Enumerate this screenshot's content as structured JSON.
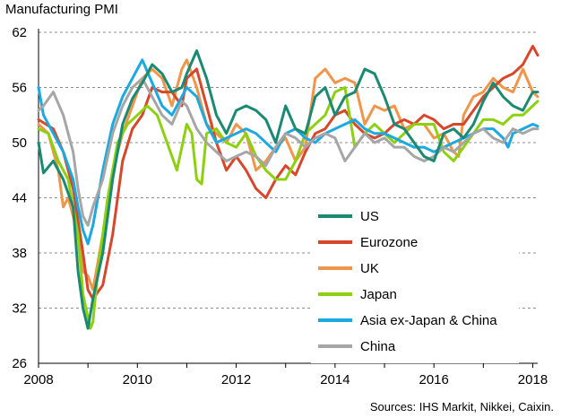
{
  "title": "Manufacturing  PMI",
  "source": "Sources: IHS Markit, Nikkei, Caixin.",
  "chart_data": {
    "type": "line",
    "title": "Manufacturing  PMI",
    "xlabel": "",
    "ylabel": "",
    "xlim": [
      2008.0,
      2018.1
    ],
    "ylim": [
      26,
      62
    ],
    "y_ticks": [
      26,
      32,
      38,
      44,
      50,
      56,
      62
    ],
    "x_ticks": [
      2008,
      2010,
      2012,
      2014,
      2016,
      2018
    ],
    "x_tick_labels": [
      "2008",
      "2010",
      "2012",
      "2014",
      "2016",
      "2018"
    ],
    "grid": "horizontal dashed",
    "legend_position": "center-right",
    "series": [
      {
        "name": "US",
        "color": "#1b8a72",
        "x": [
          2008.0,
          2008.1,
          2008.3,
          2008.5,
          2008.7,
          2008.8,
          2008.9,
          2009.0,
          2009.1,
          2009.3,
          2009.5,
          2009.7,
          2009.9,
          2010.1,
          2010.3,
          2010.5,
          2010.7,
          2010.9,
          2011.0,
          2011.2,
          2011.4,
          2011.6,
          2011.8,
          2012.0,
          2012.2,
          2012.4,
          2012.6,
          2012.8,
          2013.0,
          2013.2,
          2013.4,
          2013.6,
          2013.8,
          2014.0,
          2014.2,
          2014.4,
          2014.6,
          2014.8,
          2015.0,
          2015.2,
          2015.4,
          2015.6,
          2015.8,
          2016.0,
          2016.2,
          2016.4,
          2016.6,
          2016.8,
          2017.0,
          2017.2,
          2017.4,
          2017.6,
          2017.8,
          2018.0,
          2018.1
        ],
        "values": [
          50,
          46.7,
          48,
          46,
          43,
          36,
          32,
          29.8,
          33,
          38,
          46,
          52,
          54.8,
          56.5,
          58.5,
          57.5,
          55.5,
          56,
          57.5,
          60,
          57,
          53,
          51,
          53.5,
          54,
          53.5,
          52.5,
          50,
          54,
          51.5,
          51,
          55,
          56,
          53,
          55,
          55.5,
          58,
          57.5,
          55,
          52,
          51.5,
          50,
          48.5,
          48,
          51,
          51.5,
          50.5,
          52,
          54.5,
          56.5,
          55,
          54,
          53.5,
          55.5,
          55.5
        ]
      },
      {
        "name": "Eurozone",
        "color": "#d6472b",
        "x": [
          2008.0,
          2008.3,
          2008.5,
          2008.7,
          2008.9,
          2009.0,
          2009.1,
          2009.3,
          2009.5,
          2009.7,
          2009.9,
          2010.1,
          2010.3,
          2010.5,
          2010.7,
          2010.9,
          2011.0,
          2011.2,
          2011.4,
          2011.6,
          2011.8,
          2012.0,
          2012.2,
          2012.4,
          2012.6,
          2012.8,
          2013.0,
          2013.2,
          2013.4,
          2013.6,
          2013.8,
          2014.0,
          2014.2,
          2014.4,
          2014.6,
          2014.8,
          2015.0,
          2015.2,
          2015.4,
          2015.6,
          2015.8,
          2016.0,
          2016.2,
          2016.4,
          2016.6,
          2016.8,
          2017.0,
          2017.2,
          2017.4,
          2017.6,
          2017.8,
          2018.0,
          2018.1
        ],
        "values": [
          52.5,
          51.5,
          49,
          45,
          38,
          34,
          33,
          34.5,
          40,
          48,
          51.5,
          53,
          56,
          55.5,
          55.5,
          54,
          57,
          58,
          54,
          50,
          47,
          48.5,
          47,
          45,
          44,
          46,
          47.5,
          46.5,
          49,
          51,
          51.5,
          53,
          53.5,
          52,
          51,
          50.5,
          51,
          52,
          52.5,
          52,
          53,
          52.5,
          51.5,
          52,
          52,
          53.5,
          55,
          56,
          57,
          57.5,
          58.5,
          60.5,
          59.5
        ]
      },
      {
        "name": "UK",
        "color": "#f0964a",
        "x": [
          2008.0,
          2008.2,
          2008.4,
          2008.5,
          2008.6,
          2008.8,
          2008.9,
          2009.0,
          2009.1,
          2009.3,
          2009.5,
          2009.7,
          2009.9,
          2010.1,
          2010.3,
          2010.5,
          2010.7,
          2010.9,
          2011.0,
          2011.2,
          2011.4,
          2011.6,
          2011.8,
          2012.0,
          2012.2,
          2012.4,
          2012.6,
          2012.8,
          2013.0,
          2013.2,
          2013.4,
          2013.6,
          2013.8,
          2014.0,
          2014.2,
          2014.4,
          2014.6,
          2014.8,
          2015.0,
          2015.2,
          2015.4,
          2015.6,
          2015.8,
          2016.0,
          2016.2,
          2016.4,
          2016.5,
          2016.6,
          2016.8,
          2017.0,
          2017.2,
          2017.4,
          2017.6,
          2017.8,
          2018.0,
          2018.1
        ],
        "values": [
          52,
          51,
          47,
          43,
          44,
          40,
          36,
          35.5,
          34,
          40,
          47,
          51,
          54,
          57,
          58,
          57,
          54,
          58,
          59,
          56,
          52,
          51,
          50,
          52,
          51,
          47,
          48,
          49.5,
          50.5,
          48,
          49.5,
          57,
          58,
          56.5,
          57,
          56.5,
          52,
          54,
          53.5,
          54,
          51.5,
          52,
          52,
          50.5,
          51,
          49,
          48.5,
          53,
          55,
          55.5,
          57,
          56,
          55.5,
          58,
          55.5,
          55
        ]
      },
      {
        "name": "Japan",
        "color": "#8dd010",
        "x": [
          2008.0,
          2008.2,
          2008.4,
          2008.6,
          2008.8,
          2008.9,
          2009.0,
          2009.05,
          2009.1,
          2009.2,
          2009.4,
          2009.6,
          2009.8,
          2010.0,
          2010.2,
          2010.4,
          2010.6,
          2010.8,
          2011.0,
          2011.1,
          2011.2,
          2011.3,
          2011.4,
          2011.6,
          2011.8,
          2012.0,
          2012.2,
          2012.4,
          2012.6,
          2012.8,
          2013.0,
          2013.2,
          2013.4,
          2013.6,
          2013.8,
          2014.0,
          2014.2,
          2014.4,
          2014.6,
          2014.8,
          2015.0,
          2015.2,
          2015.4,
          2015.6,
          2015.8,
          2016.0,
          2016.2,
          2016.4,
          2016.6,
          2016.8,
          2017.0,
          2017.2,
          2017.4,
          2017.6,
          2017.8,
          2018.0,
          2018.1
        ],
        "values": [
          51.5,
          51,
          48,
          46,
          40,
          33.5,
          31,
          29.8,
          30.5,
          36,
          44,
          50,
          52,
          53,
          54,
          53,
          50,
          47,
          52,
          51,
          46,
          45.5,
          51,
          51.5,
          50,
          49.5,
          51,
          48.5,
          47,
          46,
          46,
          48,
          51,
          52,
          53,
          55.5,
          56,
          49.5,
          51,
          52,
          51,
          50,
          51,
          52,
          52,
          52,
          49,
          48,
          49.5,
          51,
          52.5,
          52.5,
          52,
          53,
          53,
          54,
          54.5
        ]
      },
      {
        "name": "Asia ex-Japan & China",
        "color": "#1aa9e0",
        "x": [
          2008.0,
          2008.1,
          2008.3,
          2008.5,
          2008.7,
          2008.8,
          2008.9,
          2009.0,
          2009.1,
          2009.3,
          2009.5,
          2009.7,
          2009.9,
          2010.1,
          2010.3,
          2010.5,
          2010.7,
          2010.9,
          2011.0,
          2011.2,
          2011.4,
          2011.6,
          2011.8,
          2012.0,
          2012.2,
          2012.4,
          2012.6,
          2012.8,
          2013.0,
          2013.2,
          2013.4,
          2013.6,
          2013.8,
          2014.0,
          2014.2,
          2014.4,
          2014.6,
          2014.8,
          2015.0,
          2015.2,
          2015.4,
          2015.6,
          2015.8,
          2016.0,
          2016.2,
          2016.4,
          2016.6,
          2016.8,
          2017.0,
          2017.2,
          2017.4,
          2017.5,
          2017.6,
          2017.8,
          2018.0,
          2018.1
        ],
        "values": [
          56,
          53,
          51,
          49,
          46,
          43,
          40.5,
          39,
          41,
          47,
          52,
          55,
          57,
          59,
          56.5,
          54,
          53,
          55,
          56,
          55,
          52,
          50,
          50.5,
          51,
          51.5,
          51,
          50,
          49,
          51,
          51.5,
          50.5,
          50,
          51,
          51.5,
          52,
          52.5,
          51.5,
          51,
          51,
          50.5,
          50,
          49.5,
          49.5,
          49,
          49.5,
          50,
          50.5,
          51,
          51.5,
          51.5,
          50.5,
          49.5,
          51,
          51.5,
          52,
          51.8
        ]
      },
      {
        "name": "China",
        "color": "#a6a6a6",
        "x": [
          2008.0,
          2008.1,
          2008.3,
          2008.5,
          2008.7,
          2008.8,
          2008.9,
          2009.0,
          2009.1,
          2009.3,
          2009.5,
          2009.7,
          2009.9,
          2010.1,
          2010.3,
          2010.5,
          2010.7,
          2010.9,
          2011.0,
          2011.2,
          2011.4,
          2011.6,
          2011.8,
          2012.0,
          2012.2,
          2012.4,
          2012.6,
          2012.8,
          2013.0,
          2013.2,
          2013.4,
          2013.6,
          2013.8,
          2014.0,
          2014.2,
          2014.4,
          2014.6,
          2014.8,
          2015.0,
          2015.2,
          2015.4,
          2015.6,
          2015.8,
          2016.0,
          2016.2,
          2016.4,
          2016.6,
          2016.8,
          2017.0,
          2017.2,
          2017.4,
          2017.6,
          2017.8,
          2018.0,
          2018.1
        ],
        "values": [
          53.5,
          54,
          55.5,
          53,
          49,
          45,
          42,
          41,
          43,
          46,
          51,
          54,
          56,
          57,
          55,
          53,
          52,
          54.5,
          54,
          51.5,
          50,
          49,
          48,
          48.5,
          49,
          48.5,
          47.5,
          49.5,
          51,
          50.5,
          49.5,
          50.5,
          51,
          50.5,
          48,
          49.5,
          51,
          50,
          50.5,
          49.5,
          49.5,
          48.5,
          48,
          48.5,
          49.5,
          49,
          50,
          51,
          51.5,
          50.5,
          50,
          51.5,
          51,
          51.5,
          51.5
        ]
      }
    ]
  }
}
